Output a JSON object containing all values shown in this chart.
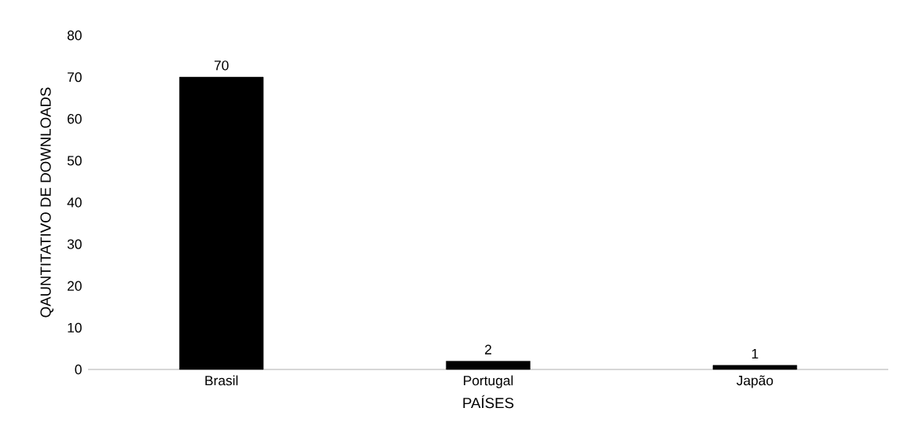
{
  "chart_data": {
    "type": "bar",
    "xlabel": "PAÍSES",
    "ylabel": "QAUNTITATIVO DE DOWNLOADS",
    "categories": [
      "Brasil",
      "Portugal",
      "Japão"
    ],
    "values": [
      70,
      2,
      1
    ],
    "color": "#000000",
    "ylim": [
      0,
      80
    ],
    "yticks": [
      0,
      10,
      20,
      30,
      40,
      50,
      60,
      70,
      80
    ],
    "data_labels": true,
    "grid": false
  }
}
